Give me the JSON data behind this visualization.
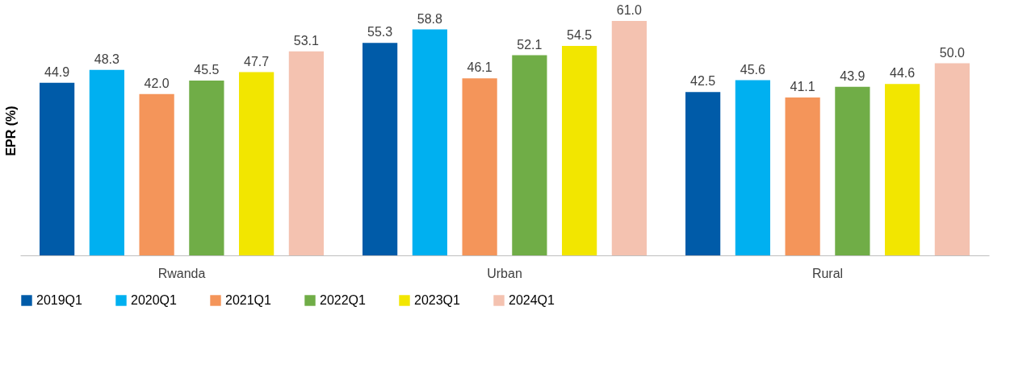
{
  "chart_data": {
    "type": "bar",
    "ylabel": "EPR (%)",
    "categories": [
      "Rwanda",
      "Urban",
      "Rural"
    ],
    "series": [
      {
        "name": "2019Q1",
        "color": "#005ba8",
        "values": [
          44.9,
          55.3,
          42.5
        ],
        "value_labels": [
          "44.9",
          "55.3",
          "42.5"
        ]
      },
      {
        "name": "2020Q1",
        "color": "#00b0f0",
        "values": [
          48.3,
          58.8,
          45.6
        ],
        "value_labels": [
          "48.3",
          "58.8",
          "45.6"
        ]
      },
      {
        "name": "2021Q1",
        "color": "#f4955a",
        "values": [
          42.0,
          46.1,
          41.1
        ],
        "value_labels": [
          "42.0",
          "46.1",
          "41.1"
        ]
      },
      {
        "name": "2022Q1",
        "color": "#70ad47",
        "values": [
          45.5,
          52.1,
          43.9
        ],
        "value_labels": [
          "45.5",
          "52.1",
          "43.9"
        ]
      },
      {
        "name": "2023Q1",
        "color": "#f2e600",
        "values": [
          47.7,
          54.5,
          44.6
        ],
        "value_labels": [
          "47.7",
          "54.5",
          "44.6"
        ]
      },
      {
        "name": "2024Q1",
        "color": "#f4c2b0",
        "values": [
          53.1,
          61.0,
          50.0
        ],
        "value_labels": [
          "53.1",
          "61.0",
          "50.0"
        ]
      }
    ],
    "legend": "bottom",
    "grid": false,
    "tick_labels": "x"
  }
}
